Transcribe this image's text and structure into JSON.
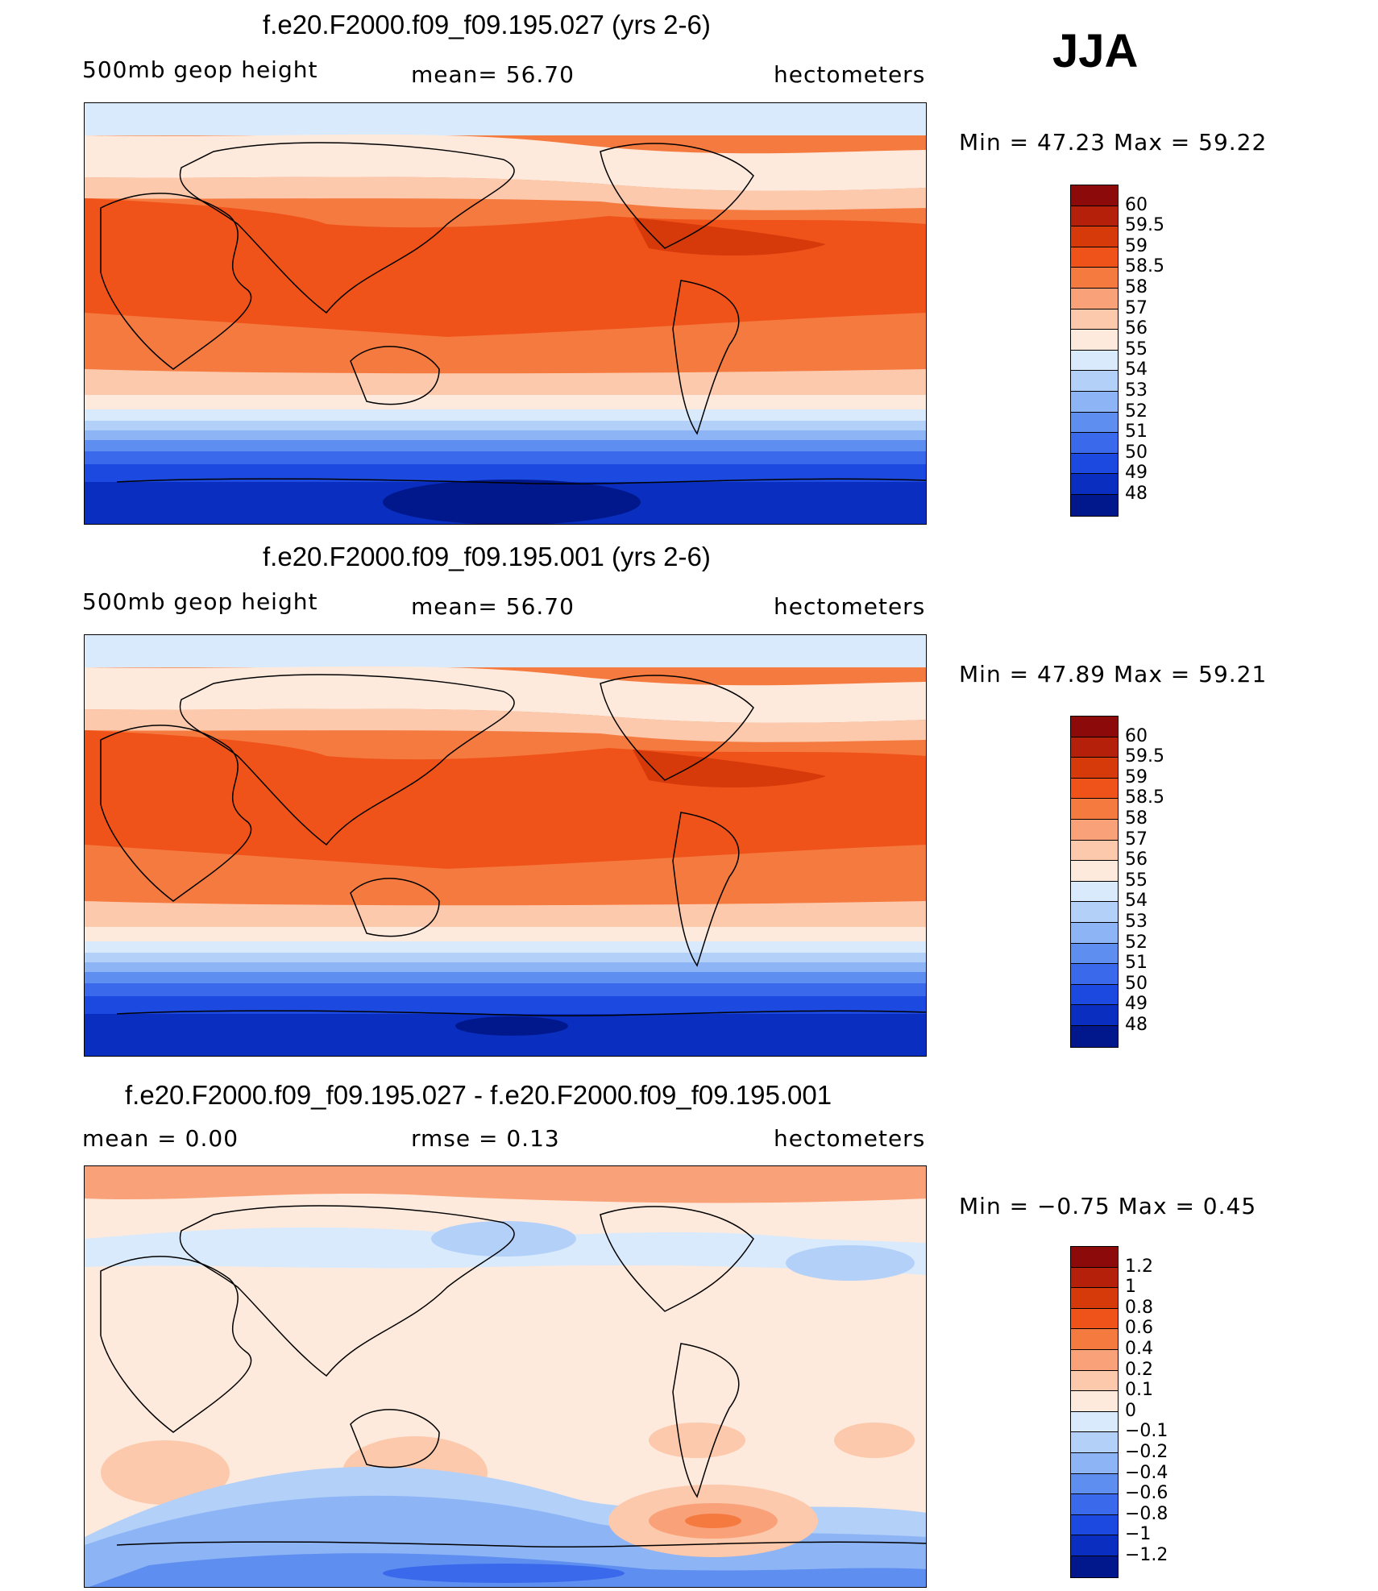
{
  "season": "JJA",
  "panels": [
    {
      "title": "f.e20.F2000.f09_f09.195.027 (yrs 2-6)",
      "left_label": "500mb  geop  height",
      "mid_label": "mean=   56.70",
      "right_label": "hectometers",
      "minmax": "Min  =    47.23  Max  =    59.22",
      "legend_labels": [
        "60",
        "59.5",
        "59",
        "58.5",
        "58",
        "57",
        "56",
        "55",
        "54",
        "53",
        "52",
        "51",
        "50",
        "49",
        "48"
      ]
    },
    {
      "title": "f.e20.F2000.f09_f09.195.001 (yrs 2-6)",
      "left_label": "500mb  geop  height",
      "mid_label": "mean=   56.70",
      "right_label": "hectometers",
      "minmax": "Min  =    47.89  Max  =    59.21",
      "legend_labels": [
        "60",
        "59.5",
        "59",
        "58.5",
        "58",
        "57",
        "56",
        "55",
        "54",
        "53",
        "52",
        "51",
        "50",
        "49",
        "48"
      ]
    },
    {
      "title": "f.e20.F2000.f09_f09.195.027 - f.e20.F2000.f09_f09.195.001",
      "left_label": "mean  =     0.00",
      "mid_label": "rmse  =     0.13",
      "right_label": "hectometers",
      "minmax": "Min  =    −0.75  Max  =     0.45",
      "legend_labels": [
        "1.2",
        "1",
        "0.8",
        "0.6",
        "0.4",
        "0.2",
        "0.1",
        "0",
        "−0.1",
        "−0.2",
        "−0.4",
        "−0.6",
        "−0.8",
        "−1",
        "−1.2"
      ]
    }
  ],
  "colorbar_colors": [
    "#8c0a0a",
    "#b5200a",
    "#d63a0a",
    "#f0531a",
    "#f57a40",
    "#f9a27a",
    "#fcc9ac",
    "#feeadc",
    "#d9eafc",
    "#b3d0f9",
    "#8db4f5",
    "#5e8ef0",
    "#3a6aeb",
    "#1c49e0",
    "#0a2fc0",
    "#00188c"
  ]
}
